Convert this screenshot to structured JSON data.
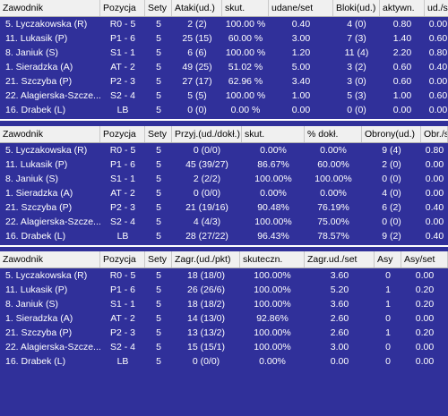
{
  "colors": {
    "background": "#30309a",
    "header_bg": "#f0f0f0",
    "text": "#ffffff"
  },
  "attack_table": {
    "headers": [
      "Zawodnik",
      "Pozycja",
      "Sety",
      "Ataki(ud.)",
      "skut.",
      "udane/set",
      "Bloki(ud.)",
      "aktywn.",
      "ud./s"
    ],
    "rows": [
      [
        "5. Lyczakowska (R)",
        "R0 - 5",
        "5",
        "2 (2)",
        "100.00 %",
        "0.40",
        "4 (0)",
        "0.80",
        "0.00"
      ],
      [
        "11. Lukasik (P)",
        "P1 - 6",
        "5",
        "25 (15)",
        "60.00 %",
        "3.00",
        "7 (3)",
        "1.40",
        "0.60"
      ],
      [
        "8. Janiuk (S)",
        "S1 - 1",
        "5",
        "6 (6)",
        "100.00 %",
        "1.20",
        "11 (4)",
        "2.20",
        "0.80"
      ],
      [
        "1. Sieradzka (A)",
        "AT - 2",
        "5",
        "49 (25)",
        "51.02 %",
        "5.00",
        "3 (2)",
        "0.60",
        "0.40"
      ],
      [
        "21. Szczyba (P)",
        "P2 - 3",
        "5",
        "27 (17)",
        "62.96 %",
        "3.40",
        "3 (0)",
        "0.60",
        "0.00"
      ],
      [
        "22. Alagierska-Szcze...",
        "S2 - 4",
        "5",
        "5 (5)",
        "100.00 %",
        "1.00",
        "5 (3)",
        "1.00",
        "0.60"
      ],
      [
        "16. Drabek (L)",
        "LB",
        "5",
        "0 (0)",
        "0.00 %",
        "0.00",
        "0 (0)",
        "0.00",
        "0.00"
      ]
    ]
  },
  "reception_table": {
    "headers": [
      "Zawodnik",
      "Pozycja",
      "Sety",
      "Przyj.(ud./dokł.)",
      "skut.",
      "% dokł.",
      "Obrony(ud.)",
      "Obr./s"
    ],
    "rows": [
      [
        "5. Lyczakowska (R)",
        "R0 - 5",
        "5",
        "0 (0/0)",
        "0.00%",
        "0.00%",
        "9 (4)",
        "0.80"
      ],
      [
        "11. Lukasik (P)",
        "P1 - 6",
        "5",
        "45 (39/27)",
        "86.67%",
        "60.00%",
        "2 (0)",
        "0.00"
      ],
      [
        "8. Janiuk (S)",
        "S1 - 1",
        "5",
        "2 (2/2)",
        "100.00%",
        "100.00%",
        "0 (0)",
        "0.00"
      ],
      [
        "1. Sieradzka (A)",
        "AT - 2",
        "5",
        "0 (0/0)",
        "0.00%",
        "0.00%",
        "4 (0)",
        "0.00"
      ],
      [
        "21. Szczyba (P)",
        "P2 - 3",
        "5",
        "21 (19/16)",
        "90.48%",
        "76.19%",
        "6 (2)",
        "0.40"
      ],
      [
        "22. Alagierska-Szcze...",
        "S2 - 4",
        "5",
        "4 (4/3)",
        "100.00%",
        "75.00%",
        "0 (0)",
        "0.00"
      ],
      [
        "16. Drabek (L)",
        "LB",
        "5",
        "28 (27/22)",
        "96.43%",
        "78.57%",
        "9 (2)",
        "0.40"
      ]
    ]
  },
  "serve_table": {
    "headers": [
      "Zawodnik",
      "Pozycja",
      "Sety",
      "Zagr.(ud./pkt)",
      "skuteczn.",
      "Zagr.ud./set",
      "Asy",
      "Asy/set"
    ],
    "rows": [
      [
        "5. Lyczakowska (R)",
        "R0 - 5",
        "5",
        "18 (18/0)",
        "100.00%",
        "3.60",
        "0",
        "0.00"
      ],
      [
        "11. Lukasik (P)",
        "P1 - 6",
        "5",
        "26 (26/6)",
        "100.00%",
        "5.20",
        "1",
        "0.20"
      ],
      [
        "8. Janiuk (S)",
        "S1 - 1",
        "5",
        "18 (18/2)",
        "100.00%",
        "3.60",
        "1",
        "0.20"
      ],
      [
        "1. Sieradzka (A)",
        "AT - 2",
        "5",
        "14 (13/0)",
        "92.86%",
        "2.60",
        "0",
        "0.00"
      ],
      [
        "21. Szczyba (P)",
        "P2 - 3",
        "5",
        "13 (13/2)",
        "100.00%",
        "2.60",
        "1",
        "0.20"
      ],
      [
        "22. Alagierska-Szcze...",
        "S2 - 4",
        "5",
        "15 (15/1)",
        "100.00%",
        "3.00",
        "0",
        "0.00"
      ],
      [
        "16. Drabek (L)",
        "LB",
        "5",
        "0 (0/0)",
        "0.00%",
        "0.00",
        "0",
        "0.00"
      ]
    ]
  }
}
